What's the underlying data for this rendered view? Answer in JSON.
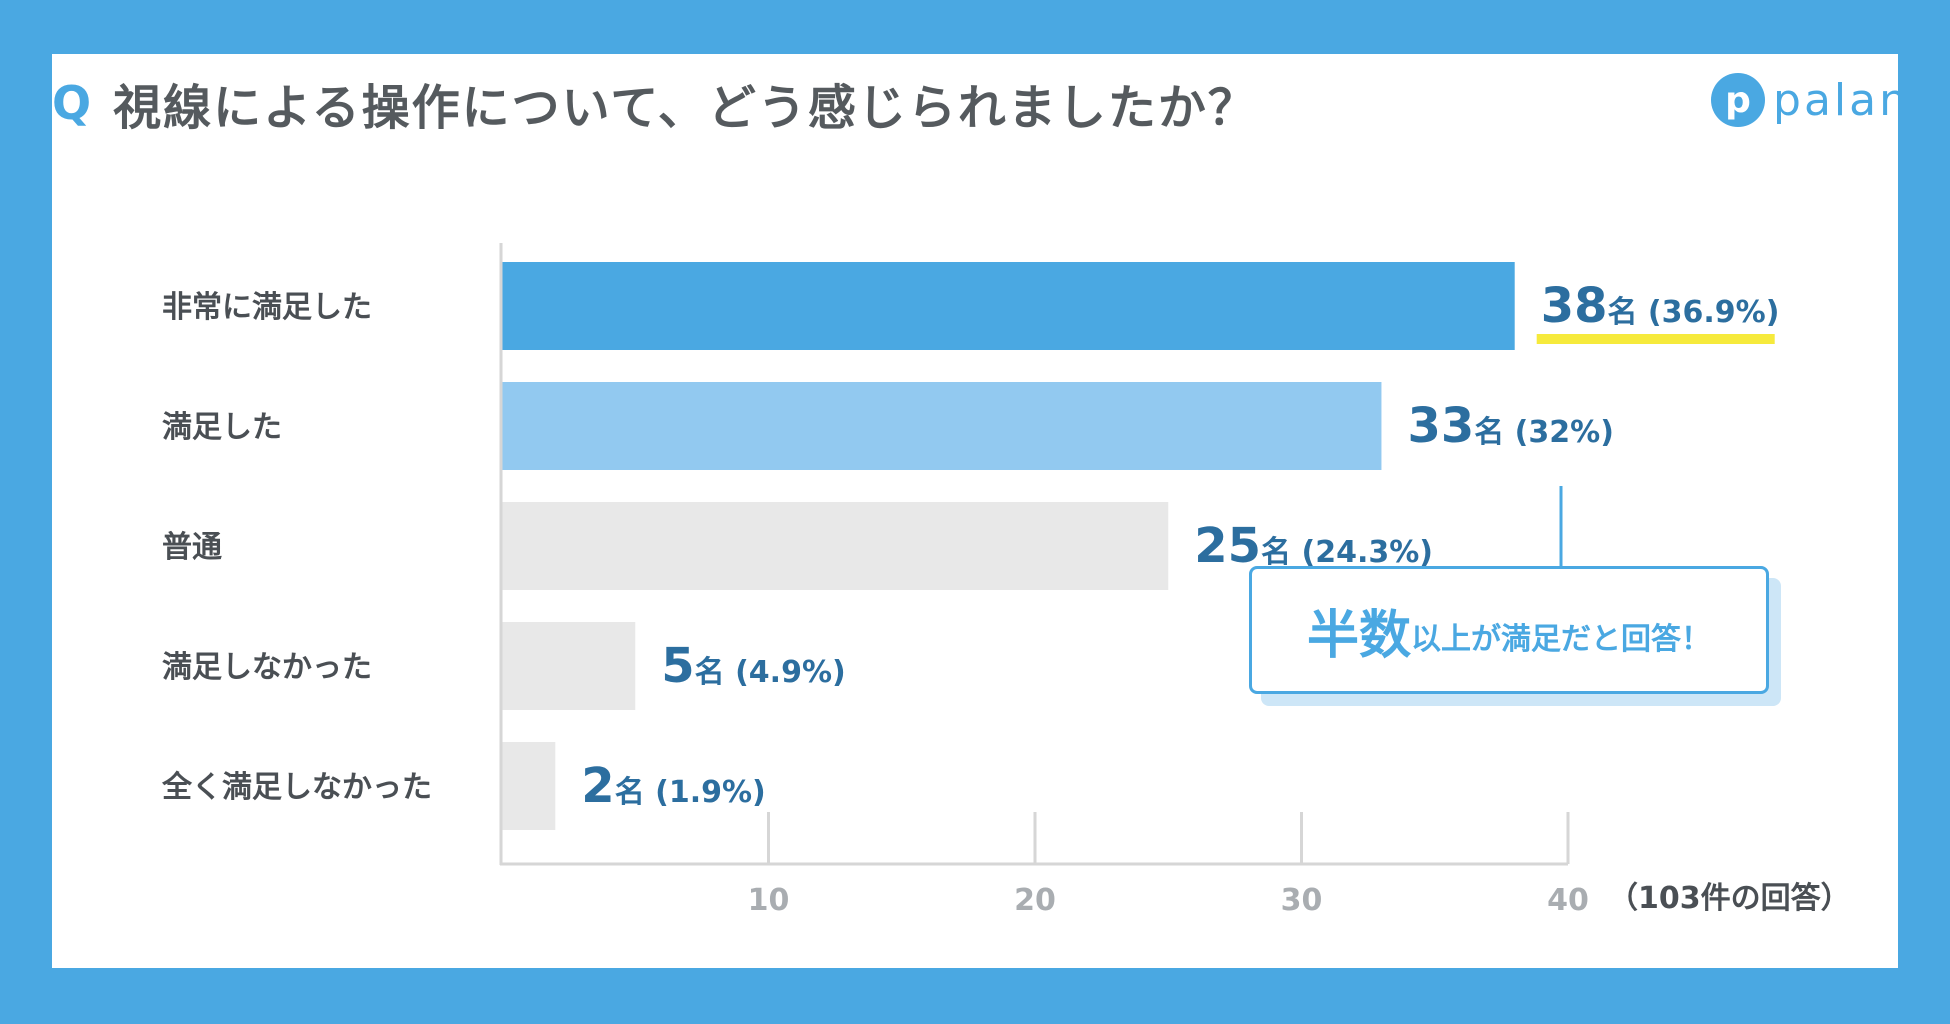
{
  "title": {
    "q": "Q",
    "text": "視線による操作について、どう感じられましたか？"
  },
  "logo": {
    "mark": "p",
    "word": "palan"
  },
  "callout": {
    "big": "半数",
    "small": "以上が満足だと回答！"
  },
  "colors": {
    "bar_top": "#4aa8e2",
    "bar_second": "#92c9f0",
    "bar_rest": "#e8e8e8",
    "highlight": "#f6ea3c",
    "value_text": "#2c6e9f"
  },
  "chart_data": {
    "type": "bar",
    "orientation": "horizontal",
    "categories": [
      "非常に満足した",
      "満足した",
      "普通",
      "満足しなかった",
      "全く満足しなかった"
    ],
    "values": [
      38,
      33,
      25,
      5,
      2
    ],
    "value_labels": [
      "38",
      "33",
      "25",
      "5",
      "2"
    ],
    "count_unit": "名",
    "percent_labels": [
      "(36.9%)",
      "(32%)",
      "(24.3%)",
      "(4.9%)",
      "(1.9%)"
    ],
    "xticks": [
      "10",
      "20",
      "30",
      "40"
    ],
    "xtick_values": [
      10,
      20,
      30,
      40
    ],
    "xlim": [
      0,
      40
    ],
    "note": "（103件の回答）"
  }
}
